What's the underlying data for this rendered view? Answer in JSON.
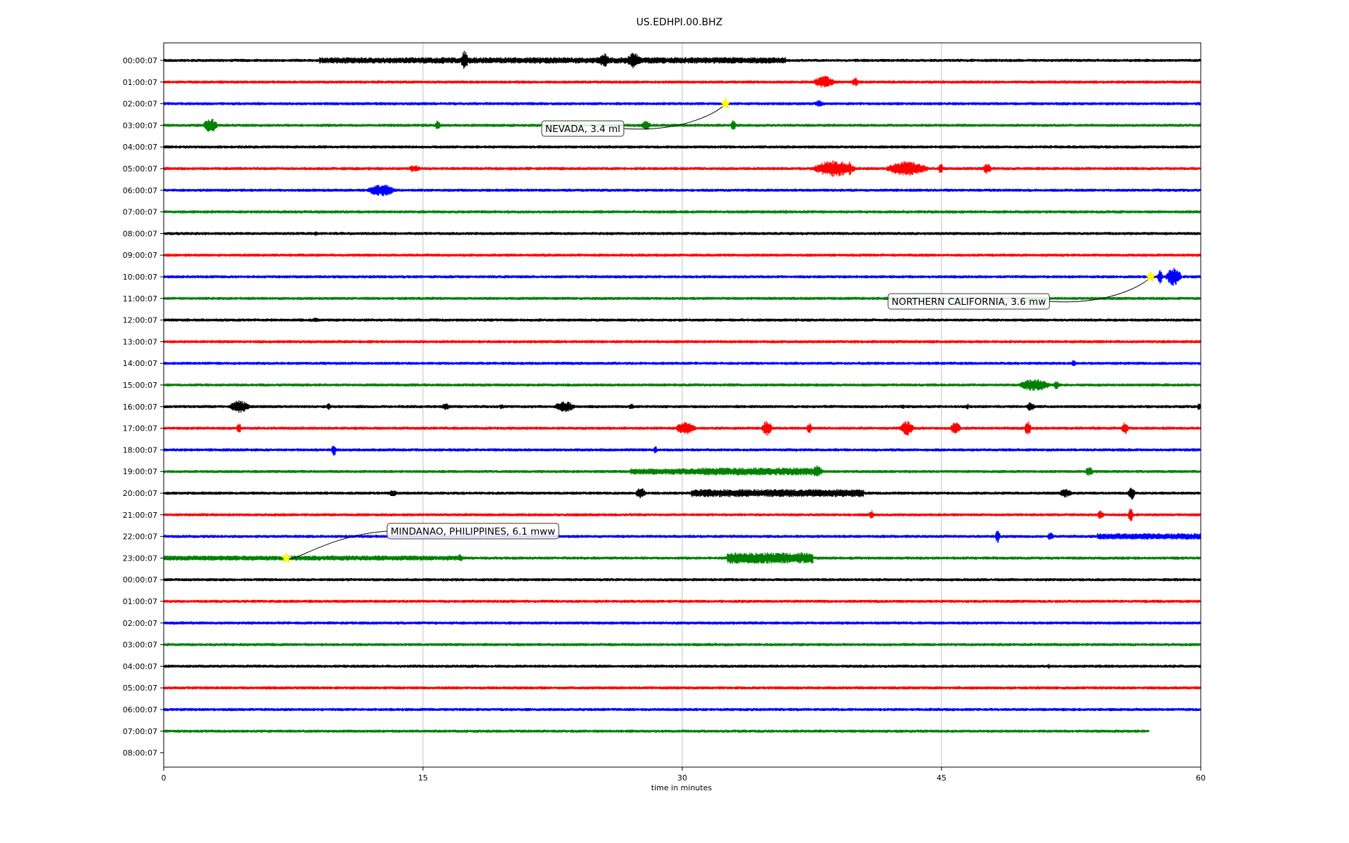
{
  "chart_data": {
    "type": "line",
    "title": "US.EDHPI.00.BHZ",
    "xlabel": "time in minutes",
    "xlim": [
      0,
      60
    ],
    "x_ticks": [
      0,
      15,
      30,
      45,
      60
    ],
    "grid": "vertical",
    "trace_colors": [
      "#000000",
      "#ff0000",
      "#0000ff",
      "#008000"
    ],
    "row_labels": [
      "00:00:07",
      "01:00:07",
      "02:00:07",
      "03:00:07",
      "04:00:07",
      "05:00:07",
      "06:00:07",
      "07:00:07",
      "08:00:07",
      "09:00:07",
      "10:00:07",
      "11:00:07",
      "12:00:07",
      "13:00:07",
      "14:00:07",
      "15:00:07",
      "16:00:07",
      "17:00:07",
      "18:00:07",
      "19:00:07",
      "20:00:07",
      "21:00:07",
      "22:00:07",
      "23:00:07",
      "00:00:07",
      "01:00:07",
      "02:00:07",
      "03:00:07",
      "04:00:07",
      "05:00:07",
      "06:00:07",
      "07:00:07",
      "08:00:07"
    ],
    "trace_end_minutes": [
      60,
      60,
      60,
      60,
      60,
      60,
      60,
      60,
      60,
      60,
      60,
      60,
      60,
      60,
      60,
      60,
      60,
      60,
      60,
      60,
      60,
      60,
      60,
      60,
      60,
      60,
      60,
      60,
      60,
      60,
      60,
      57,
      0
    ],
    "events": [
      {
        "label": "NEVADA, 3.4 ml",
        "row": 2,
        "minute": 32.5
      },
      {
        "label": "NORTHERN CALIFORNIA, 3.6 mw",
        "row": 10,
        "minute": 57.1
      },
      {
        "label": "MINDANAO, PHILIPPINES, 6.1 mww",
        "row": 23,
        "minute": 7.1
      }
    ],
    "bursts": [
      [
        [
          9,
          27,
          2
        ],
        [
          17.2,
          0.4,
          6
        ],
        [
          25.2,
          0.6,
          4
        ],
        [
          26.8,
          0.8,
          4.5
        ]
      ],
      [
        [
          37.6,
          1.2,
          3.5
        ],
        [
          39.8,
          0.4,
          2.5
        ]
      ],
      [
        [
          37.6,
          0.6,
          2
        ]
      ],
      [
        [
          2.3,
          0.8,
          4
        ],
        [
          15.7,
          0.3,
          3
        ],
        [
          27.6,
          0.6,
          2.5
        ],
        [
          32.8,
          0.3,
          3
        ]
      ],
      [],
      [
        [
          14.1,
          0.8,
          2
        ],
        [
          37.6,
          2.4,
          4.5
        ],
        [
          39.6,
          0.2,
          4.5
        ],
        [
          41.8,
          2.4,
          4
        ],
        [
          44.8,
          0.3,
          3
        ],
        [
          47.4,
          0.5,
          3
        ]
      ],
      [
        [
          11.8,
          1.6,
          3.5
        ]
      ],
      [],
      [
        [
          8.7,
          0.2,
          1.5
        ]
      ],
      [],
      [
        [
          58,
          0.9,
          5
        ],
        [
          57.5,
          0.3,
          4
        ]
      ],
      [],
      [
        [
          8.5,
          0.5,
          1.5
        ]
      ],
      [],
      [
        [
          52.5,
          0.3,
          2
        ]
      ],
      [
        [
          49.5,
          1.8,
          3.5
        ],
        [
          51.5,
          0.3,
          2.5
        ]
      ],
      [
        [
          3.8,
          1.2,
          3.5
        ],
        [
          9.4,
          0.3,
          2
        ],
        [
          16,
          0.6,
          2
        ],
        [
          19.4,
          0.3,
          1.5
        ],
        [
          22.6,
          1.2,
          3
        ],
        [
          26.9,
          0.3,
          2
        ],
        [
          42.6,
          0.3,
          1.5
        ],
        [
          46.4,
          0.2,
          2
        ],
        [
          49.9,
          0.5,
          2.5
        ],
        [
          59.8,
          0.2,
          2.5
        ]
      ],
      [
        [
          4.2,
          0.3,
          3
        ],
        [
          29.6,
          1.2,
          3.5
        ],
        [
          34.6,
          0.6,
          4
        ],
        [
          37.2,
          0.3,
          3
        ],
        [
          42.6,
          0.8,
          4
        ],
        [
          45.5,
          0.6,
          3.5
        ],
        [
          49.8,
          0.4,
          4
        ],
        [
          55.4,
          0.4,
          3.5
        ]
      ],
      [
        [
          9.7,
          0.3,
          3.5
        ],
        [
          28.3,
          0.3,
          2
        ]
      ],
      [
        [
          27,
          4,
          2
        ],
        [
          31,
          7,
          2.5
        ],
        [
          37.5,
          0.6,
          3.5
        ],
        [
          53.3,
          0.5,
          2.5
        ]
      ],
      [
        [
          13,
          0.5,
          2
        ],
        [
          27.3,
          0.6,
          3
        ],
        [
          30.5,
          10,
          2.5
        ],
        [
          51.8,
          0.8,
          2.5
        ],
        [
          55.8,
          0.4,
          4
        ]
      ],
      [
        [
          40.8,
          0.3,
          2.5
        ],
        [
          54,
          0.4,
          2.5
        ],
        [
          55.8,
          0.3,
          4
        ]
      ],
      [
        [
          48.1,
          0.3,
          3.5
        ],
        [
          51.1,
          0.4,
          2.5
        ],
        [
          54,
          6,
          2
        ]
      ],
      [
        [
          0,
          17,
          1.6
        ],
        [
          17,
          0.3,
          2.5
        ],
        [
          32.6,
          5,
          3.5
        ]
      ],
      [],
      [],
      [],
      [],
      [
        [
          51.1,
          0.2,
          1.5
        ]
      ],
      [],
      [],
      [],
      []
    ]
  }
}
